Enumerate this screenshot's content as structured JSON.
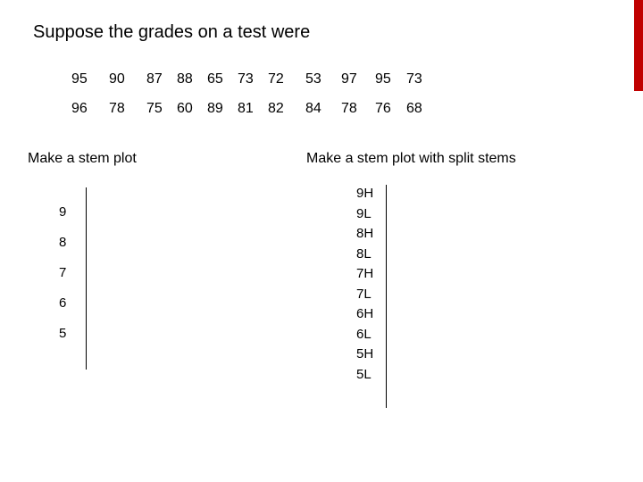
{
  "title": "Suppose the grades on a test were",
  "grades": {
    "row1": [
      "95",
      "90",
      "87",
      "88",
      "65",
      "73",
      "72",
      "53",
      "97",
      "95",
      "73"
    ],
    "row2": [
      "96",
      "78",
      "75",
      "60",
      "89",
      "81",
      "82",
      "84",
      "78",
      "76",
      "68"
    ]
  },
  "left_section": {
    "heading": "Make a stem plot",
    "stems": [
      "9",
      "8",
      "7",
      "6",
      "5"
    ]
  },
  "right_section": {
    "heading": "Make a stem plot with split stems",
    "stems": [
      "9H",
      "9L",
      "8H",
      "8L",
      "7H",
      "7L",
      "6H",
      "6L",
      "5H",
      "5L"
    ]
  },
  "colors": {
    "accent": "#c00000",
    "text": "#000000",
    "background": "#ffffff"
  }
}
